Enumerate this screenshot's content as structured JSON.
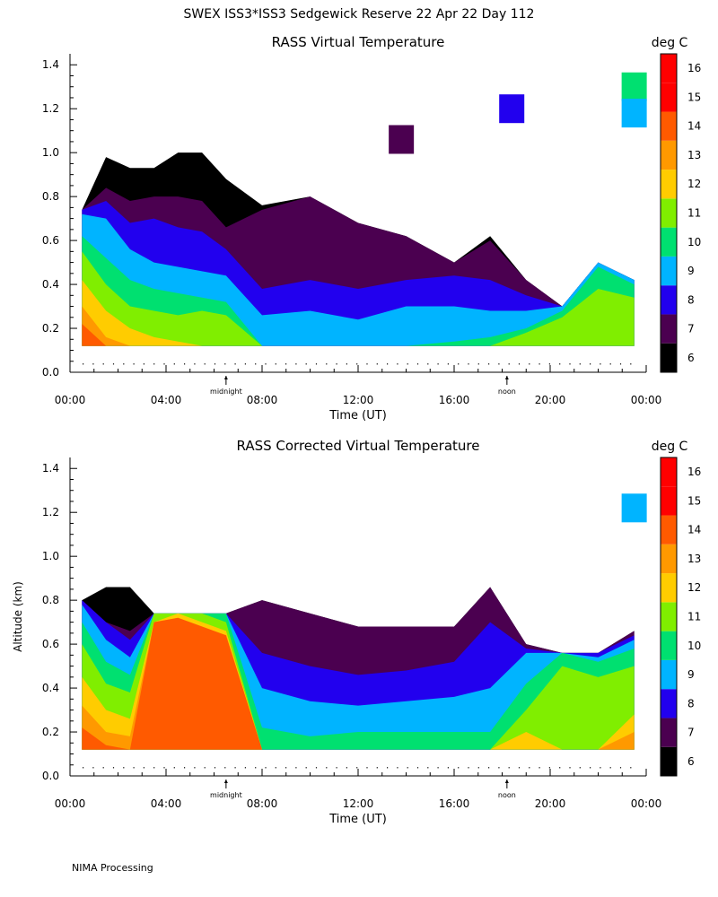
{
  "header": {
    "title": "SWEX ISS3*ISS3 Sedgewick Reserve  22 Apr 22 Day 112"
  },
  "footer": {
    "text": "NIMA Processing"
  },
  "colorbar": {
    "title": "deg C",
    "levels": [
      6,
      7,
      8,
      9,
      10,
      11,
      12,
      13,
      14,
      15,
      16
    ],
    "colors": [
      "#000000",
      "#4b0050",
      "#2200ee",
      "#00b4ff",
      "#00e070",
      "#80ee00",
      "#ffcc00",
      "#ff9900",
      "#ff5a00",
      "#ff0000",
      "#ff0000"
    ]
  },
  "time_axis": {
    "ticks": [
      "00:00",
      "04:00",
      "08:00",
      "12:00",
      "16:00",
      "20:00",
      "00:00"
    ],
    "markers": [
      {
        "label": "midnight",
        "hour": 6.5
      },
      {
        "label": "noon",
        "hour": 18.2
      }
    ]
  },
  "chart_data": [
    {
      "type": "heatmap",
      "title": "RASS Virtual Temperature",
      "xlabel": "Time (UT)",
      "ylabel": "",
      "xlim": [
        0,
        24
      ],
      "ylim": [
        0,
        1.45
      ],
      "yticks": [
        "0.0",
        "0.2",
        "0.4",
        "0.6",
        "0.8",
        "1.0",
        "1.2",
        "1.4"
      ],
      "altitude_range_km": [
        0.12,
        1.0
      ],
      "profile": {
        "hours": [
          0.5,
          1.5,
          2.5,
          3.5,
          4.5,
          5.5,
          6.5,
          8,
          10,
          12,
          14,
          16,
          17.5,
          19,
          20.5,
          22,
          23.5
        ],
        "top_km": [
          0.74,
          0.98,
          0.93,
          0.93,
          1.0,
          1.0,
          0.88,
          0.76,
          0.8,
          0.68,
          0.62,
          0.5,
          0.62,
          0.42,
          0.3,
          0.5,
          0.42
        ],
        "boundaries_km": {
          "7": [
            0.74,
            0.84,
            0.78,
            0.8,
            0.8,
            0.78,
            0.66,
            0.74,
            0.8,
            0.68,
            0.62,
            0.5,
            0.6,
            0.42,
            0.3,
            0.5,
            0.42
          ],
          "8": [
            0.74,
            0.78,
            0.68,
            0.7,
            0.66,
            0.64,
            0.56,
            0.38,
            0.42,
            0.38,
            0.42,
            0.44,
            0.42,
            0.35,
            0.3,
            0.5,
            0.42
          ],
          "9": [
            0.72,
            0.7,
            0.56,
            0.5,
            0.48,
            0.46,
            0.44,
            0.26,
            0.28,
            0.24,
            0.3,
            0.3,
            0.28,
            0.28,
            0.3,
            0.5,
            0.42
          ],
          "10": [
            0.62,
            0.52,
            0.42,
            0.38,
            0.36,
            0.34,
            0.32,
            0.12,
            0.12,
            0.12,
            0.12,
            0.14,
            0.16,
            0.2,
            0.28,
            0.48,
            0.4
          ],
          "11": [
            0.55,
            0.4,
            0.3,
            0.28,
            0.26,
            0.28,
            0.26,
            0.12,
            0.12,
            0.12,
            0.12,
            0.12,
            0.12,
            0.18,
            0.25,
            0.38,
            0.34
          ],
          "12": [
            0.42,
            0.28,
            0.2,
            0.16,
            0.14,
            0.12,
            0.12,
            0.12,
            0.12,
            0.12,
            0.12,
            0.12,
            0.12,
            0.12,
            0.12,
            0.12,
            0.12
          ],
          "13": [
            0.3,
            0.16,
            0.12,
            0.12,
            0.12,
            0.12,
            0.12,
            0.12,
            0.12,
            0.12,
            0.12,
            0.12,
            0.12,
            0.12,
            0.12,
            0.12,
            0.12
          ],
          "14": [
            0.22,
            0.12,
            0.12,
            0.12,
            0.12,
            0.12,
            0.12,
            0.12,
            0.12,
            0.12,
            0.12,
            0.12,
            0.12,
            0.12,
            0.12,
            0.12,
            0.12
          ]
        }
      },
      "isolated_patches": [
        {
          "hour": 13.8,
          "alt_km": 1.06,
          "value": 7
        },
        {
          "hour": 18.4,
          "alt_km": 1.2,
          "value": 8
        },
        {
          "hour": 23.5,
          "alt_km": 1.3,
          "value": 10
        },
        {
          "hour": 23.5,
          "alt_km": 1.18,
          "value": 9
        }
      ]
    },
    {
      "type": "heatmap",
      "title": "RASS Corrected Virtual Temperature",
      "xlabel": "Time (UT)",
      "ylabel": "Altitude (km)",
      "xlim": [
        0,
        24
      ],
      "ylim": [
        0,
        1.45
      ],
      "yticks": [
        "0.0",
        "0.2",
        "0.4",
        "0.6",
        "0.8",
        "1.0",
        "1.2",
        "1.4"
      ],
      "altitude_range_km": [
        0.12,
        0.86
      ],
      "profile": {
        "hours": [
          0.5,
          1.5,
          2.5,
          3.5,
          4.5,
          5.5,
          6.5,
          8,
          10,
          12,
          14,
          16,
          17.5,
          19,
          20.5,
          22,
          23.5
        ],
        "top_km": [
          0.8,
          0.86,
          0.86,
          0.74,
          0.74,
          0.74,
          0.74,
          0.8,
          0.74,
          0.68,
          0.68,
          0.68,
          0.86,
          0.6,
          0.56,
          0.56,
          0.66
        ],
        "boundaries_km": {
          "7": [
            0.8,
            0.7,
            0.66,
            0.74,
            0.74,
            0.74,
            0.74,
            0.8,
            0.74,
            0.68,
            0.68,
            0.68,
            0.86,
            0.6,
            0.56,
            0.56,
            0.66
          ],
          "8": [
            0.8,
            0.7,
            0.62,
            0.74,
            0.74,
            0.74,
            0.74,
            0.56,
            0.5,
            0.46,
            0.48,
            0.52,
            0.7,
            0.58,
            0.56,
            0.56,
            0.64
          ],
          "9": [
            0.78,
            0.62,
            0.54,
            0.74,
            0.74,
            0.74,
            0.74,
            0.4,
            0.34,
            0.32,
            0.34,
            0.36,
            0.4,
            0.56,
            0.56,
            0.54,
            0.62
          ],
          "10": [
            0.7,
            0.52,
            0.46,
            0.74,
            0.74,
            0.74,
            0.74,
            0.22,
            0.18,
            0.2,
            0.2,
            0.2,
            0.2,
            0.42,
            0.56,
            0.52,
            0.58
          ],
          "11": [
            0.6,
            0.42,
            0.38,
            0.74,
            0.74,
            0.74,
            0.7,
            0.12,
            0.12,
            0.12,
            0.12,
            0.12,
            0.12,
            0.3,
            0.5,
            0.45,
            0.5
          ],
          "12": [
            0.45,
            0.3,
            0.26,
            0.7,
            0.74,
            0.7,
            0.66,
            0.12,
            0.12,
            0.12,
            0.12,
            0.12,
            0.12,
            0.2,
            0.12,
            0.12,
            0.28
          ],
          "13": [
            0.32,
            0.2,
            0.18,
            0.7,
            0.72,
            0.68,
            0.64,
            0.12,
            0.12,
            0.12,
            0.12,
            0.12,
            0.12,
            0.12,
            0.12,
            0.12,
            0.2
          ],
          "14": [
            0.22,
            0.14,
            0.12,
            0.7,
            0.72,
            0.68,
            0.64,
            0.12,
            0.12,
            0.12,
            0.12,
            0.12,
            0.12,
            0.12,
            0.12,
            0.12,
            0.12
          ]
        }
      },
      "isolated_patches": [
        {
          "hour": 23.5,
          "alt_km": 1.22,
          "value": 9
        }
      ]
    }
  ]
}
